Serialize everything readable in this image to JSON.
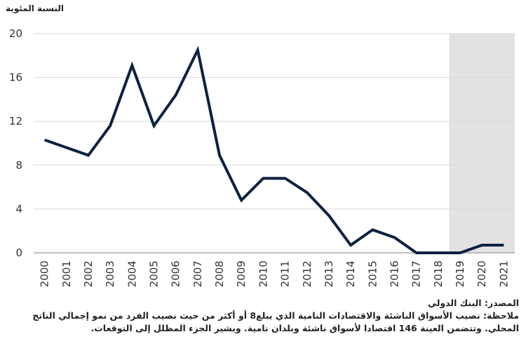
{
  "chart_data": {
    "type": "line",
    "ylabel": "النسبة المئوية",
    "ylim": [
      0,
      20
    ],
    "yticks": [
      0,
      4,
      8,
      12,
      16,
      20
    ],
    "x": [
      "2000",
      "2001",
      "2002",
      "2003",
      "2004",
      "2005",
      "2006",
      "2007",
      "2008",
      "2009",
      "2010",
      "2011",
      "2012",
      "2013",
      "2014",
      "2015",
      "2016",
      "2017",
      "2018",
      "2019",
      "2020",
      "2021"
    ],
    "series": [
      {
        "name": "share",
        "values": [
          10.3,
          9.6,
          8.9,
          11.6,
          17.1,
          11.6,
          14.4,
          18.5,
          8.9,
          4.8,
          6.8,
          6.8,
          5.5,
          3.4,
          0.7,
          2.1,
          1.4,
          0.0,
          0.0,
          0.0,
          0.7,
          0.7
        ]
      }
    ],
    "shaded_from": "2019",
    "line_color": "#0d2240",
    "shade_color": "#e2e2e2"
  },
  "footer": {
    "source": "المصدر: البنك الدولي",
    "note": "ملاحظة: نصيب الأسواق الناشئة والاقتصادات النامية الذي يبلغ8 أو أكثر من حيث نصيب الفرد من نمو إجمالي الناتج المحلي. وتتضمن العينة 146 اقتصادا لأسواق ناشئة وبلدان نامية. ويشير الجزء المظلل إلى التوقعات."
  }
}
